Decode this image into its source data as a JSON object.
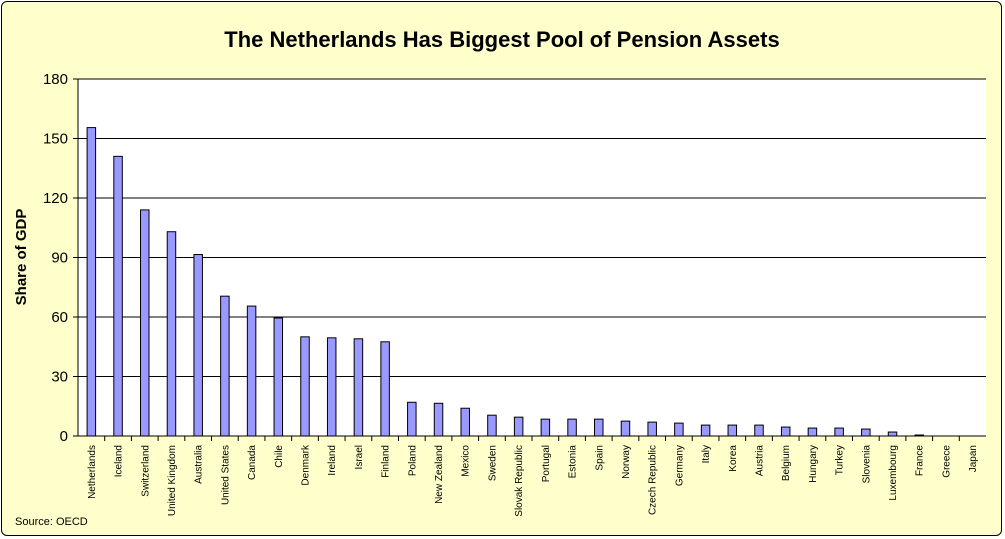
{
  "chart_data": {
    "type": "bar",
    "title": "The Netherlands Has Biggest Pool of Pension Assets",
    "xlabel": "",
    "ylabel": "Share of GDP",
    "ylim": [
      0,
      180
    ],
    "yticks": [
      0,
      30,
      60,
      90,
      120,
      150,
      180
    ],
    "grid": true,
    "legend": "none",
    "bar_color": "#9999ff",
    "source": "Source: OECD",
    "categories": [
      "Netherlands",
      "Iceland",
      "Switzerland",
      "United Kingdom",
      "Australia",
      "United States",
      "Canada",
      "Chile",
      "Denmark",
      "Ireland",
      "Israel",
      "Finland",
      "Poland",
      "New Zealand",
      "Mexico",
      "Sweden",
      "Slovak Republic",
      "Portugal",
      "Estonia",
      "Spain",
      "Norway",
      "Czech Republic",
      "Germany",
      "Italy",
      "Korea",
      "Austria",
      "Belgium",
      "Hungary",
      "Turkey",
      "Slovenia",
      "Luxembourg",
      "France",
      "Greece",
      "Japan"
    ],
    "values": [
      155.5,
      141,
      114,
      103,
      91.5,
      70.5,
      65.5,
      59.5,
      50,
      49.5,
      49,
      47.5,
      17,
      16.5,
      14,
      10.5,
      9.5,
      8.5,
      8.5,
      8.5,
      7.5,
      7,
      6.5,
      5.5,
      5.5,
      5.5,
      4.5,
      4,
      4,
      3.5,
      2,
      0.5,
      0,
      0
    ]
  }
}
